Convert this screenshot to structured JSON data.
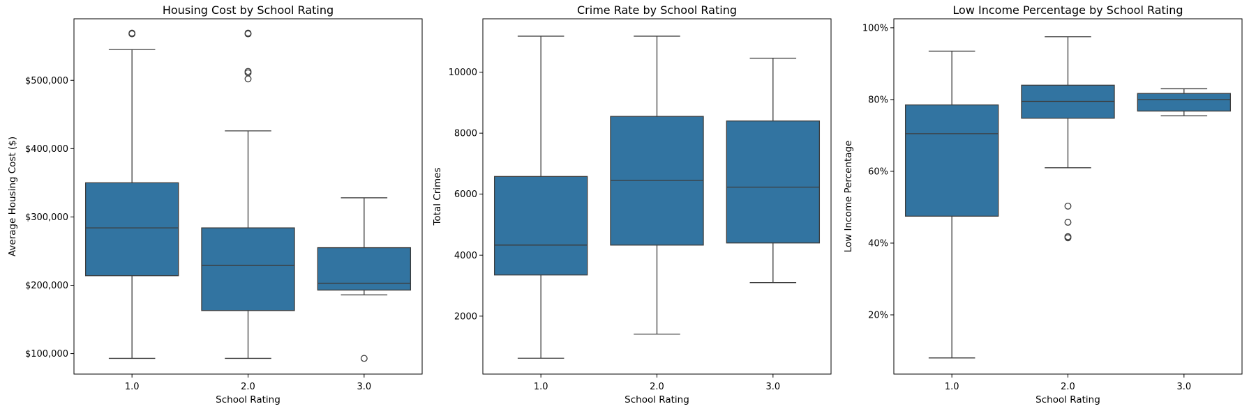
{
  "chart_data": [
    {
      "type": "box",
      "title": "Housing Cost by School Rating",
      "xlabel": "School Rating",
      "ylabel": "Average Housing Cost ($)",
      "categories": [
        "1.0",
        "2.0",
        "3.0"
      ],
      "ylim": [
        70000,
        590000
      ],
      "yticks": [
        100000,
        200000,
        300000,
        400000,
        500000
      ],
      "ytick_labels": [
        "$100,000",
        "$200,000",
        "$300,000",
        "$400,000",
        "$500,000"
      ],
      "boxes": [
        {
          "whislo": 93000,
          "q1": 214000,
          "med": 284000,
          "q3": 350000,
          "whishi": 545000,
          "fliers": [
            568000,
            569000
          ]
        },
        {
          "whislo": 93000,
          "q1": 163000,
          "med": 229000,
          "q3": 284000,
          "whishi": 426000,
          "fliers": [
            568000,
            569000,
            513000,
            511000,
            502000
          ]
        },
        {
          "whislo": 186000,
          "q1": 193000,
          "med": 203000,
          "q3": 255000,
          "whishi": 328000,
          "fliers": [
            93000
          ]
        }
      ],
      "color": "#3274a1"
    },
    {
      "type": "box",
      "title": "Crime Rate by School Rating",
      "xlabel": "School Rating",
      "ylabel": "Total Crimes",
      "categories": [
        "1.0",
        "2.0",
        "3.0"
      ],
      "ylim": [
        100,
        11750
      ],
      "yticks": [
        2000,
        4000,
        6000,
        8000,
        10000
      ],
      "ytick_labels": [
        "2000",
        "4000",
        "6000",
        "8000",
        "10000"
      ],
      "boxes": [
        {
          "whislo": 620,
          "q1": 3350,
          "med": 4330,
          "q3": 6580,
          "whishi": 11180,
          "fliers": []
        },
        {
          "whislo": 1410,
          "q1": 4330,
          "med": 6450,
          "q3": 8550,
          "whishi": 11180,
          "fliers": []
        },
        {
          "whislo": 3100,
          "q1": 4400,
          "med": 6230,
          "q3": 8400,
          "whishi": 10460,
          "fliers": []
        }
      ],
      "color": "#3274a1"
    },
    {
      "type": "box",
      "title": "Low Income Percentage by School Rating",
      "xlabel": "School Rating",
      "ylabel": "Low Income Percentage",
      "categories": [
        "1.0",
        "2.0",
        "3.0"
      ],
      "ylim": [
        0.035,
        1.025
      ],
      "yticks": [
        0.2,
        0.4,
        0.6,
        0.8,
        1.0
      ],
      "ytick_labels": [
        "20%",
        "40%",
        "60%",
        "80%",
        "100%"
      ],
      "boxes": [
        {
          "whislo": 0.08,
          "q1": 0.475,
          "med": 0.705,
          "q3": 0.785,
          "whishi": 0.935,
          "fliers": []
        },
        {
          "whislo": 0.61,
          "q1": 0.748,
          "med": 0.795,
          "q3": 0.84,
          "whishi": 0.975,
          "fliers": [
            0.503,
            0.458,
            0.418,
            0.415
          ]
        },
        {
          "whislo": 0.755,
          "q1": 0.768,
          "med": 0.8,
          "q3": 0.817,
          "whishi": 0.83,
          "fliers": []
        }
      ],
      "color": "#3274a1"
    }
  ]
}
